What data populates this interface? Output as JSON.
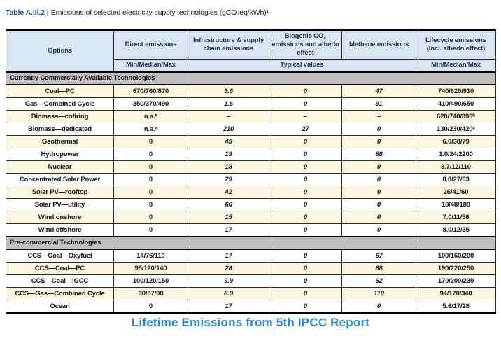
{
  "title": {
    "label": "Table A.III.2",
    "separator": "|",
    "text": "Emissions of selected electricity supply technologies (gCO₂eq/kWh)¹"
  },
  "table": {
    "header": {
      "options": "Options",
      "direct": "Direct emissions",
      "infrastructure": "Infrastructure & supply chain emissions",
      "biogenic": "Biogenic CO₂ emissions and albedo effect",
      "methane": "Methane emissions",
      "lifecycle": "Lifecycle emissions (incl. albedo effect)"
    },
    "subheader": {
      "direct": "Min/Median/Max",
      "typical": "Typical values",
      "lifecycle": "Min/Median/Max"
    },
    "sections": [
      {
        "title": "Currently Commercially Available Technologies",
        "rows": [
          {
            "option": "Coal—PC",
            "direct": "670/760/870",
            "infra": "9.6",
            "biogenic": "0",
            "methane": "47",
            "lifecycle": "740/820/910"
          },
          {
            "option": "Gas—Combined Cycle",
            "direct": "350/370/490",
            "infra": "1.6",
            "biogenic": "0",
            "methane": "91",
            "lifecycle": "410/490/650"
          },
          {
            "option": "Biomass—cofiring",
            "direct": "n.a.ᵃ",
            "infra": "–",
            "biogenic": "–",
            "methane": "–",
            "lifecycle": "620/740/890ᵇ"
          },
          {
            "option": "Biomass—dedicated",
            "direct": "n.a.ᵃ",
            "infra": "210",
            "biogenic": "27",
            "methane": "0",
            "lifecycle": "130/230/420ᶜ"
          },
          {
            "option": "Geothermal",
            "direct": "0",
            "infra": "45",
            "biogenic": "0",
            "methane": "0",
            "lifecycle": "6.0/38/79"
          },
          {
            "option": "Hydropower",
            "direct": "0",
            "infra": "19",
            "biogenic": "0",
            "methane": "88",
            "lifecycle": "1.0/24/2200"
          },
          {
            "option": "Nuclear",
            "direct": "0",
            "infra": "18",
            "biogenic": "0",
            "methane": "0",
            "lifecycle": "3.7/12/110"
          },
          {
            "option": "Concentrated Solar Power",
            "direct": "0",
            "infra": "29",
            "biogenic": "0",
            "methane": "0",
            "lifecycle": "8.8/27/63"
          },
          {
            "option": "Solar PV—rooftop",
            "direct": "0",
            "infra": "42",
            "biogenic": "0",
            "methane": "0",
            "lifecycle": "26/41/60"
          },
          {
            "option": "Solar PV—utility",
            "direct": "0",
            "infra": "66",
            "biogenic": "0",
            "methane": "0",
            "lifecycle": "18/48/180"
          },
          {
            "option": "Wind onshore",
            "direct": "0",
            "infra": "15",
            "biogenic": "0",
            "methane": "0",
            "lifecycle": "7.0/11/56"
          },
          {
            "option": "Wind offshore",
            "direct": "0",
            "infra": "17",
            "biogenic": "0",
            "methane": "0",
            "lifecycle": "8.0/12/35"
          }
        ]
      },
      {
        "title": "Pre-commercial Technologies",
        "rows": [
          {
            "option": "CCS—Coal—Oxyfuel",
            "direct": "14/76/110",
            "infra": "17",
            "biogenic": "0",
            "methane": "67",
            "lifecycle": "100/160/200"
          },
          {
            "option": "CCS—Coal—PC",
            "direct": "95/120/140",
            "infra": "28",
            "biogenic": "0",
            "methane": "68",
            "lifecycle": "190/220/250"
          },
          {
            "option": "CCS—Coal—IGCC",
            "direct": "100/120/150",
            "infra": "9.9",
            "biogenic": "0",
            "methane": "62",
            "lifecycle": "170/200/230"
          },
          {
            "option": "CCS—Gas—Combined Cycle",
            "direct": "30/57/98",
            "infra": "8.9",
            "biogenic": "0",
            "methane": "110",
            "lifecycle": "94/170/340"
          },
          {
            "option": "Ocean",
            "direct": "0",
            "infra": "17",
            "biogenic": "0",
            "methane": "0",
            "lifecycle": "5.6/17/28"
          }
        ]
      }
    ]
  },
  "caption": "Lifetime Emissions from 5th IPCC Report",
  "colors": {
    "header_bg": "#D9E5F0",
    "section_bg": "#BFBFBF",
    "row_alt_bg": "#FDF6E1",
    "header_text": "#17365D",
    "title_label_blue": "#1F4E79",
    "caption_blue": "#2186DF"
  }
}
